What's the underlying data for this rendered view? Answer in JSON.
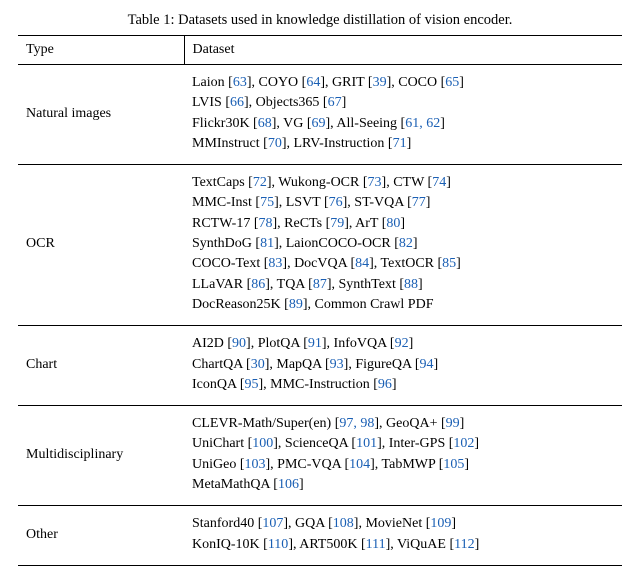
{
  "caption": "Table 1: Datasets used in knowledge distillation of vision encoder.",
  "colors": {
    "cite": "#1a5fb4",
    "text": "#000000",
    "bg": "#ffffff",
    "rule": "#000000"
  },
  "fontsize_pt": 14,
  "header": {
    "type": "Type",
    "dataset": "Dataset"
  },
  "rows": [
    {
      "type": "Natural images",
      "datasets": [
        {
          "name": "Laion",
          "ref": "63"
        },
        {
          "name": "COYO",
          "ref": "64"
        },
        {
          "name": "GRIT",
          "ref": "39"
        },
        {
          "name": "COCO",
          "ref": "65"
        },
        {
          "sep": ","
        },
        {
          "br": true
        },
        {
          "name": "LVIS",
          "ref": "66"
        },
        {
          "name": "Objects365",
          "ref": "67"
        },
        {
          "sep": ","
        },
        {
          "br": true
        },
        {
          "name": "Flickr30K",
          "ref": "68"
        },
        {
          "name": "VG",
          "ref": "69"
        },
        {
          "name": "All-Seeing",
          "ref": "61, 62"
        },
        {
          "sep": ","
        },
        {
          "br": true
        },
        {
          "name": "MMInstruct",
          "ref": "70"
        },
        {
          "name": "LRV-Instruction",
          "ref": "71"
        }
      ]
    },
    {
      "type": "OCR",
      "datasets": [
        {
          "name": "TextCaps",
          "ref": "72"
        },
        {
          "name": "Wukong-OCR",
          "ref": "73"
        },
        {
          "name": "CTW",
          "ref": "74"
        },
        {
          "sep": ","
        },
        {
          "br": true
        },
        {
          "name": "MMC-Inst",
          "ref": "75"
        },
        {
          "name": "LSVT",
          "ref": "76"
        },
        {
          "name": "ST-VQA",
          "ref": "77"
        },
        {
          "sep": ","
        },
        {
          "br": true
        },
        {
          "name": "RCTW-17",
          "ref": "78"
        },
        {
          "name": "ReCTs",
          "ref": "79"
        },
        {
          "name": "ArT",
          "ref": "80"
        },
        {
          "sep": ","
        },
        {
          "br": true
        },
        {
          "name": "SynthDoG",
          "ref": "81"
        },
        {
          "name": "LaionCOCO-OCR",
          "ref": "82"
        },
        {
          "sep": ","
        },
        {
          "br": true
        },
        {
          "name": "COCO-Text",
          "ref": "83"
        },
        {
          "name": "DocVQA",
          "ref": "84"
        },
        {
          "name": "TextOCR",
          "ref": "85"
        },
        {
          "sep": ","
        },
        {
          "br": true
        },
        {
          "name": "LLaVAR",
          "ref": "86"
        },
        {
          "name": "TQA",
          "ref": "87"
        },
        {
          "name": "SynthText",
          "ref": "88"
        },
        {
          "br": true
        },
        {
          "name": "DocReason25K",
          "ref": "89"
        },
        {
          "plain": "Common Crawl PDF"
        }
      ]
    },
    {
      "type": "Chart",
      "datasets": [
        {
          "name": "AI2D",
          "ref": "90"
        },
        {
          "name": "PlotQA",
          "ref": "91"
        },
        {
          "name": "InfoVQA",
          "ref": "92"
        },
        {
          "sep": ","
        },
        {
          "br": true
        },
        {
          "name": "ChartQA",
          "ref": "30"
        },
        {
          "name": "MapQA",
          "ref": "93"
        },
        {
          "name": "FigureQA",
          "ref": "94"
        },
        {
          "sep": ","
        },
        {
          "br": true
        },
        {
          "name": "IconQA",
          "ref": "95"
        },
        {
          "name": "MMC-Instruction",
          "ref": "96"
        }
      ]
    },
    {
      "type": "Multidisciplinary",
      "datasets": [
        {
          "name": "CLEVR-Math/Super(en)",
          "ref": "97, 98"
        },
        {
          "name": "GeoQA+",
          "ref": "99"
        },
        {
          "sep": ","
        },
        {
          "br": true
        },
        {
          "name": "UniChart",
          "ref": "100"
        },
        {
          "name": "ScienceQA",
          "ref": "101"
        },
        {
          "name": "Inter-GPS",
          "ref": "102"
        },
        {
          "sep": ","
        },
        {
          "br": true
        },
        {
          "name": "UniGeo",
          "ref": "103"
        },
        {
          "name": "PMC-VQA",
          "ref": "104"
        },
        {
          "name": "TabMWP",
          "ref": "105"
        },
        {
          "sep": ","
        },
        {
          "br": true
        },
        {
          "plain": "MetaMathQA"
        },
        {
          "name_only_ref": "106"
        }
      ]
    },
    {
      "type": "Other",
      "datasets": [
        {
          "name": "Stanford40",
          "ref": "107"
        },
        {
          "name": "GQA",
          "ref": "108"
        },
        {
          "name": "MovieNet",
          "ref": "109"
        },
        {
          "sep": ","
        },
        {
          "br": true
        },
        {
          "name": "KonIQ-10K",
          "ref": "110"
        },
        {
          "name": "ART500K",
          "ref": "111"
        },
        {
          "name": "ViQuAE",
          "ref": "112"
        }
      ]
    }
  ]
}
